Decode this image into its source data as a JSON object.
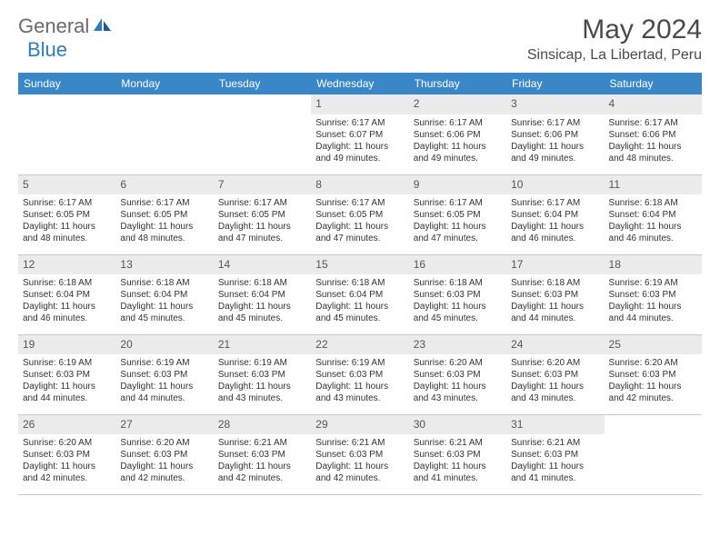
{
  "logo": {
    "part1": "General",
    "part2": "Blue"
  },
  "title": "May 2024",
  "location": "Sinsicap, La Libertad, Peru",
  "colors": {
    "header_bg": "#3a87c8",
    "header_text": "#ffffff",
    "daynum_bg": "#ebebeb",
    "border": "#c8c8c8",
    "logo_gray": "#6b6b6b",
    "logo_blue": "#2d7dc0",
    "text": "#333333"
  },
  "day_headers": [
    "Sunday",
    "Monday",
    "Tuesday",
    "Wednesday",
    "Thursday",
    "Friday",
    "Saturday"
  ],
  "weeks": [
    [
      {
        "n": "",
        "sr": "",
        "ss": "",
        "dl": ""
      },
      {
        "n": "",
        "sr": "",
        "ss": "",
        "dl": ""
      },
      {
        "n": "",
        "sr": "",
        "ss": "",
        "dl": ""
      },
      {
        "n": "1",
        "sr": "Sunrise: 6:17 AM",
        "ss": "Sunset: 6:07 PM",
        "dl": "Daylight: 11 hours and 49 minutes."
      },
      {
        "n": "2",
        "sr": "Sunrise: 6:17 AM",
        "ss": "Sunset: 6:06 PM",
        "dl": "Daylight: 11 hours and 49 minutes."
      },
      {
        "n": "3",
        "sr": "Sunrise: 6:17 AM",
        "ss": "Sunset: 6:06 PM",
        "dl": "Daylight: 11 hours and 49 minutes."
      },
      {
        "n": "4",
        "sr": "Sunrise: 6:17 AM",
        "ss": "Sunset: 6:06 PM",
        "dl": "Daylight: 11 hours and 48 minutes."
      }
    ],
    [
      {
        "n": "5",
        "sr": "Sunrise: 6:17 AM",
        "ss": "Sunset: 6:05 PM",
        "dl": "Daylight: 11 hours and 48 minutes."
      },
      {
        "n": "6",
        "sr": "Sunrise: 6:17 AM",
        "ss": "Sunset: 6:05 PM",
        "dl": "Daylight: 11 hours and 48 minutes."
      },
      {
        "n": "7",
        "sr": "Sunrise: 6:17 AM",
        "ss": "Sunset: 6:05 PM",
        "dl": "Daylight: 11 hours and 47 minutes."
      },
      {
        "n": "8",
        "sr": "Sunrise: 6:17 AM",
        "ss": "Sunset: 6:05 PM",
        "dl": "Daylight: 11 hours and 47 minutes."
      },
      {
        "n": "9",
        "sr": "Sunrise: 6:17 AM",
        "ss": "Sunset: 6:05 PM",
        "dl": "Daylight: 11 hours and 47 minutes."
      },
      {
        "n": "10",
        "sr": "Sunrise: 6:17 AM",
        "ss": "Sunset: 6:04 PM",
        "dl": "Daylight: 11 hours and 46 minutes."
      },
      {
        "n": "11",
        "sr": "Sunrise: 6:18 AM",
        "ss": "Sunset: 6:04 PM",
        "dl": "Daylight: 11 hours and 46 minutes."
      }
    ],
    [
      {
        "n": "12",
        "sr": "Sunrise: 6:18 AM",
        "ss": "Sunset: 6:04 PM",
        "dl": "Daylight: 11 hours and 46 minutes."
      },
      {
        "n": "13",
        "sr": "Sunrise: 6:18 AM",
        "ss": "Sunset: 6:04 PM",
        "dl": "Daylight: 11 hours and 45 minutes."
      },
      {
        "n": "14",
        "sr": "Sunrise: 6:18 AM",
        "ss": "Sunset: 6:04 PM",
        "dl": "Daylight: 11 hours and 45 minutes."
      },
      {
        "n": "15",
        "sr": "Sunrise: 6:18 AM",
        "ss": "Sunset: 6:04 PM",
        "dl": "Daylight: 11 hours and 45 minutes."
      },
      {
        "n": "16",
        "sr": "Sunrise: 6:18 AM",
        "ss": "Sunset: 6:03 PM",
        "dl": "Daylight: 11 hours and 45 minutes."
      },
      {
        "n": "17",
        "sr": "Sunrise: 6:18 AM",
        "ss": "Sunset: 6:03 PM",
        "dl": "Daylight: 11 hours and 44 minutes."
      },
      {
        "n": "18",
        "sr": "Sunrise: 6:19 AM",
        "ss": "Sunset: 6:03 PM",
        "dl": "Daylight: 11 hours and 44 minutes."
      }
    ],
    [
      {
        "n": "19",
        "sr": "Sunrise: 6:19 AM",
        "ss": "Sunset: 6:03 PM",
        "dl": "Daylight: 11 hours and 44 minutes."
      },
      {
        "n": "20",
        "sr": "Sunrise: 6:19 AM",
        "ss": "Sunset: 6:03 PM",
        "dl": "Daylight: 11 hours and 44 minutes."
      },
      {
        "n": "21",
        "sr": "Sunrise: 6:19 AM",
        "ss": "Sunset: 6:03 PM",
        "dl": "Daylight: 11 hours and 43 minutes."
      },
      {
        "n": "22",
        "sr": "Sunrise: 6:19 AM",
        "ss": "Sunset: 6:03 PM",
        "dl": "Daylight: 11 hours and 43 minutes."
      },
      {
        "n": "23",
        "sr": "Sunrise: 6:20 AM",
        "ss": "Sunset: 6:03 PM",
        "dl": "Daylight: 11 hours and 43 minutes."
      },
      {
        "n": "24",
        "sr": "Sunrise: 6:20 AM",
        "ss": "Sunset: 6:03 PM",
        "dl": "Daylight: 11 hours and 43 minutes."
      },
      {
        "n": "25",
        "sr": "Sunrise: 6:20 AM",
        "ss": "Sunset: 6:03 PM",
        "dl": "Daylight: 11 hours and 42 minutes."
      }
    ],
    [
      {
        "n": "26",
        "sr": "Sunrise: 6:20 AM",
        "ss": "Sunset: 6:03 PM",
        "dl": "Daylight: 11 hours and 42 minutes."
      },
      {
        "n": "27",
        "sr": "Sunrise: 6:20 AM",
        "ss": "Sunset: 6:03 PM",
        "dl": "Daylight: 11 hours and 42 minutes."
      },
      {
        "n": "28",
        "sr": "Sunrise: 6:21 AM",
        "ss": "Sunset: 6:03 PM",
        "dl": "Daylight: 11 hours and 42 minutes."
      },
      {
        "n": "29",
        "sr": "Sunrise: 6:21 AM",
        "ss": "Sunset: 6:03 PM",
        "dl": "Daylight: 11 hours and 42 minutes."
      },
      {
        "n": "30",
        "sr": "Sunrise: 6:21 AM",
        "ss": "Sunset: 6:03 PM",
        "dl": "Daylight: 11 hours and 41 minutes."
      },
      {
        "n": "31",
        "sr": "Sunrise: 6:21 AM",
        "ss": "Sunset: 6:03 PM",
        "dl": "Daylight: 11 hours and 41 minutes."
      },
      {
        "n": "",
        "sr": "",
        "ss": "",
        "dl": ""
      }
    ]
  ]
}
